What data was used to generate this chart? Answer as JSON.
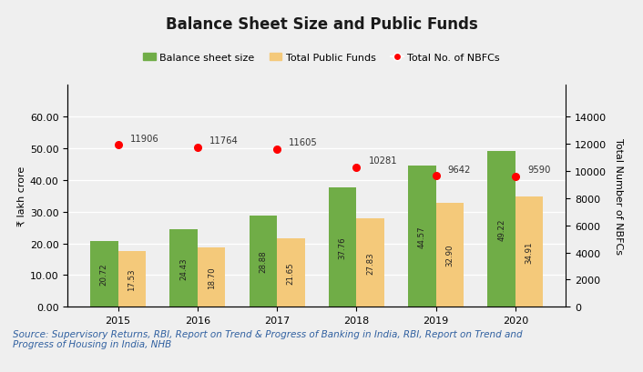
{
  "title": "Balance Sheet Size and Public Funds",
  "years": [
    "2015",
    "2016",
    "2017",
    "2018",
    "2019",
    "2020"
  ],
  "balance_sheet": [
    20.72,
    24.43,
    28.88,
    37.76,
    44.57,
    49.22
  ],
  "public_funds": [
    17.53,
    18.7,
    21.65,
    27.83,
    32.9,
    34.91
  ],
  "nbfcs": [
    11906,
    11764,
    11605,
    10281,
    9642,
    9590
  ],
  "bar_color_green": "#70AD47",
  "bar_color_tan": "#F4C97A",
  "dot_color": "#FF0000",
  "ylabel_left": "₹ lakh crore",
  "ylabel_right": "Total Number of NBFCs",
  "ylim_left": [
    0,
    70
  ],
  "ylim_right": [
    0,
    16333
  ],
  "yticks_left": [
    0.0,
    10.0,
    20.0,
    30.0,
    40.0,
    50.0,
    60.0
  ],
  "yticks_right": [
    0,
    2000,
    4000,
    6000,
    8000,
    10000,
    12000,
    14000
  ],
  "legend_labels": [
    "Balance sheet size",
    "Total Public Funds",
    "Total No. of NBFCs"
  ],
  "source_text": "Source: Supervisory Returns, RBI, Report on Trend & Progress of Banking in India, RBI, Report on Trend and\nProgress of Housing in India, NHB",
  "bg_color": "#EFEFEF",
  "bar_width": 0.35,
  "title_fontsize": 12,
  "label_fontsize": 8,
  "tick_fontsize": 8,
  "source_fontsize": 7.5
}
